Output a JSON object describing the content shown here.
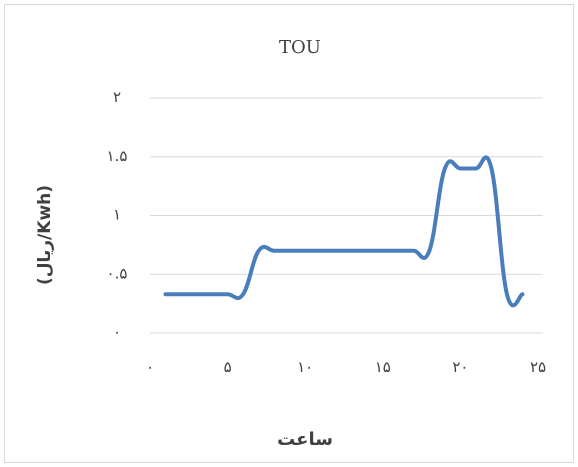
{
  "chart_data": {
    "type": "line",
    "title": "TOU",
    "x_label": "ساعت",
    "y_label": "(ریال/Kwh)",
    "x": [
      1,
      2,
      3,
      4,
      5,
      6,
      7,
      8,
      9,
      10,
      11,
      12,
      13,
      14,
      15,
      16,
      17,
      18,
      19,
      20,
      21,
      22,
      23,
      24
    ],
    "values": [
      0.33,
      0.33,
      0.33,
      0.33,
      0.33,
      0.33,
      0.7,
      0.7,
      0.7,
      0.7,
      0.7,
      0.7,
      0.7,
      0.7,
      0.7,
      0.7,
      0.7,
      0.7,
      1.4,
      1.4,
      1.4,
      1.4,
      0.33,
      0.33
    ],
    "color": "#4a7ebb",
    "xlim": [
      0,
      25
    ],
    "xticks": [
      {
        "value": 0,
        "label": "۰"
      },
      {
        "value": 5,
        "label": "۵"
      },
      {
        "value": 10,
        "label": "۱۰"
      },
      {
        "value": 15,
        "label": "۱۵"
      },
      {
        "value": 20,
        "label": "۲۰"
      },
      {
        "value": 25,
        "label": "۲۵"
      }
    ],
    "ylim": [
      0,
      2
    ],
    "yticks": [
      {
        "value": 0,
        "label": "۰"
      },
      {
        "value": 0.5,
        "label": "۰.۵"
      },
      {
        "value": 1,
        "label": "۱"
      },
      {
        "value": 1.5,
        "label": "۱.۵"
      },
      {
        "value": 2,
        "label": "۲"
      }
    ],
    "grid": true
  }
}
